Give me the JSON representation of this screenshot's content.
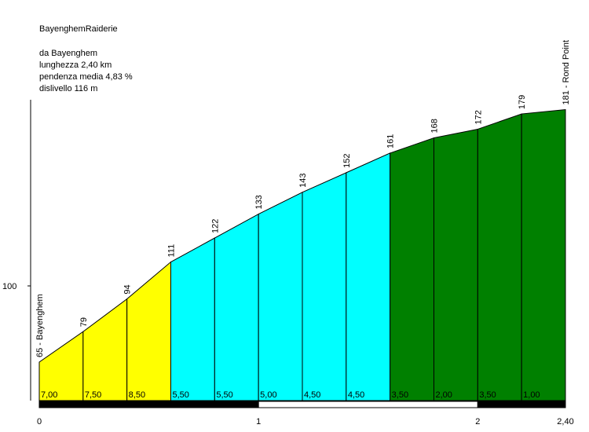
{
  "title": "BayenghemRaiderie",
  "info": {
    "line1": "da Bayenghem",
    "line2": "lunghezza 2,40 km",
    "line3": "pendenza media 4,83 %",
    "line4": "dislivello 116 m"
  },
  "chart_data": {
    "type": "area",
    "title": "BayenghemRaiderie",
    "xlabel": "",
    "ylabel": "",
    "x_ticks": [
      "0",
      "1",
      "2",
      "2,40"
    ],
    "y_ticks": [
      "100"
    ],
    "xlim": [
      0,
      2.4
    ],
    "ylim": [
      40,
      210
    ],
    "grid": false,
    "points": [
      {
        "x": 0.0,
        "elev": 65,
        "label": "65 - Bayenghem"
      },
      {
        "x": 0.2,
        "elev": 79,
        "label": "79"
      },
      {
        "x": 0.4,
        "elev": 94,
        "label": "94"
      },
      {
        "x": 0.6,
        "elev": 111,
        "label": "111"
      },
      {
        "x": 0.8,
        "elev": 122,
        "label": "122"
      },
      {
        "x": 1.0,
        "elev": 133,
        "label": "133"
      },
      {
        "x": 1.2,
        "elev": 143,
        "label": "143"
      },
      {
        "x": 1.4,
        "elev": 152,
        "label": "152"
      },
      {
        "x": 1.6,
        "elev": 161,
        "label": "161"
      },
      {
        "x": 1.8,
        "elev": 168,
        "label": "168"
      },
      {
        "x": 2.0,
        "elev": 172,
        "label": "172"
      },
      {
        "x": 2.2,
        "elev": 179,
        "label": "179"
      },
      {
        "x": 2.4,
        "elev": 181,
        "label": "181 - Rond Point"
      }
    ],
    "segments": [
      {
        "from": 0.0,
        "to": 0.2,
        "gradient": "7,00",
        "color": "#ffff00"
      },
      {
        "from": 0.2,
        "to": 0.4,
        "gradient": "7,50",
        "color": "#ffff00"
      },
      {
        "from": 0.4,
        "to": 0.6,
        "gradient": "8,50",
        "color": "#ffff00"
      },
      {
        "from": 0.6,
        "to": 0.8,
        "gradient": "5,50",
        "color": "#00ffff"
      },
      {
        "from": 0.8,
        "to": 1.0,
        "gradient": "5,50",
        "color": "#00ffff"
      },
      {
        "from": 1.0,
        "to": 1.2,
        "gradient": "5,00",
        "color": "#00ffff"
      },
      {
        "from": 1.2,
        "to": 1.4,
        "gradient": "4,50",
        "color": "#00ffff"
      },
      {
        "from": 1.4,
        "to": 1.6,
        "gradient": "4,50",
        "color": "#00ffff"
      },
      {
        "from": 1.6,
        "to": 1.8,
        "gradient": "3,50",
        "color": "#008000"
      },
      {
        "from": 1.8,
        "to": 2.0,
        "gradient": "2,00",
        "color": "#008000"
      },
      {
        "from": 2.0,
        "to": 2.2,
        "gradient": "3,50",
        "color": "#008000"
      },
      {
        "from": 2.2,
        "to": 2.4,
        "gradient": "1,00",
        "color": "#008000"
      }
    ],
    "km_bar": [
      {
        "from": 0,
        "to": 1,
        "color": "#000000"
      },
      {
        "from": 1,
        "to": 2,
        "color": "#ffffff"
      },
      {
        "from": 2,
        "to": 2.4,
        "color": "#000000"
      }
    ],
    "tick_positions": [
      0,
      1,
      2,
      2.4
    ],
    "y_tick_values": [
      100
    ]
  }
}
